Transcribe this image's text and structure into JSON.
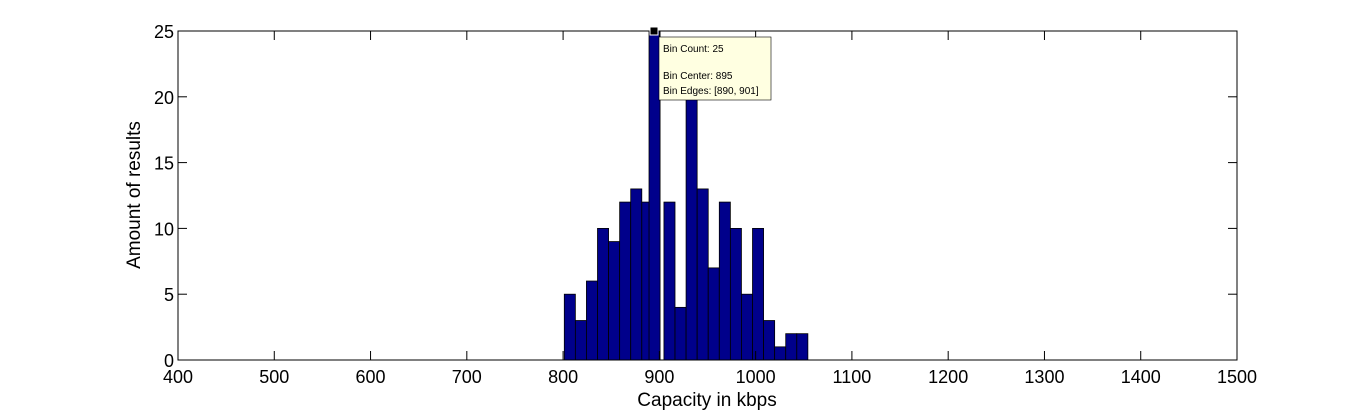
{
  "chart_data": {
    "type": "bar",
    "title": "",
    "xlabel": "Capacity in kbps",
    "ylabel": "Amount of results",
    "xlim": [
      400,
      1500
    ],
    "ylim": [
      0,
      25
    ],
    "xticks": [
      400,
      500,
      600,
      700,
      800,
      900,
      1000,
      1100,
      1200,
      1300,
      1400,
      1500
    ],
    "yticks": [
      0,
      5,
      10,
      15,
      20,
      25
    ],
    "grid": false,
    "bar_color": "#00008b",
    "bin_width": 11.5,
    "bin_centers": [
      807,
      818.5,
      830,
      841.5,
      853,
      864.5,
      876,
      887.5,
      895,
      910.5,
      922,
      933.5,
      945,
      956.5,
      968,
      979.5,
      991,
      1002.5,
      1014,
      1025.5,
      1037,
      1048.5
    ],
    "values": [
      5,
      3,
      6,
      10,
      9,
      12,
      13,
      12,
      25,
      12,
      4,
      20,
      13,
      7,
      12,
      10,
      5,
      10,
      3,
      1,
      2,
      2
    ]
  },
  "datatip": {
    "line1": "Bin Count: 25",
    "line2": "Bin Center: 895",
    "line3": "Bin Edges: [890, 901]",
    "bg_color": "#ffffe1"
  }
}
